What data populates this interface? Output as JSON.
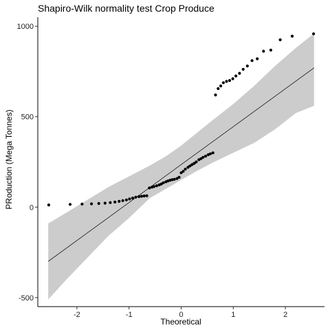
{
  "chart_data": {
    "type": "scatter",
    "title": "Shapiro-Wilk normality test  Crop Produce",
    "xlabel": "Theoretical",
    "ylabel": "PRoduction (Mega Tonnes)",
    "xlim": [
      -2.75,
      2.75
    ],
    "ylim": [
      -550,
      1050
    ],
    "x_ticks": [
      -2,
      -1,
      0,
      1,
      2
    ],
    "x_tick_labels": [
      "-2",
      "-1",
      "0",
      "1",
      "2"
    ],
    "y_ticks": [
      -500,
      0,
      500,
      1000
    ],
    "y_tick_labels": [
      "-500",
      "0",
      "500",
      "1000"
    ],
    "grid": false,
    "reference_line": {
      "x": [
        -2.55,
        2.55
      ],
      "y": [
        -300,
        770
      ]
    },
    "confidence_band": {
      "x": [
        -2.55,
        -2.2,
        -1.8,
        -1.4,
        -1.0,
        -0.6,
        -0.3,
        0.0,
        0.3,
        0.6,
        1.0,
        1.4,
        1.8,
        2.2,
        2.55
      ],
      "upper": [
        -90,
        -30,
        40,
        110,
        170,
        230,
        280,
        340,
        410,
        480,
        570,
        670,
        780,
        880,
        960
      ],
      "lower": [
        -510,
        -400,
        -280,
        -160,
        -60,
        50,
        100,
        150,
        200,
        245,
        300,
        355,
        430,
        520,
        560
      ]
    },
    "series": [
      {
        "color": "#000000",
        "x": [
          -2.54,
          -2.13,
          -1.9,
          -1.72,
          -1.58,
          -1.46,
          -1.36,
          -1.27,
          -1.19,
          -1.12,
          -1.05,
          -0.99,
          -0.93,
          -0.87,
          -0.81,
          -0.76,
          -0.71,
          -0.66,
          -0.61,
          -0.56,
          -0.52,
          -0.47,
          -0.42,
          -0.38,
          -0.34,
          -0.29,
          -0.25,
          -0.21,
          -0.17,
          -0.13,
          -0.08,
          -0.04,
          0.0,
          0.04,
          0.08,
          0.13,
          0.17,
          0.21,
          0.25,
          0.29,
          0.34,
          0.38,
          0.42,
          0.47,
          0.52,
          0.56,
          0.61,
          0.66,
          0.71,
          0.76,
          0.81,
          0.87,
          0.93,
          0.99,
          1.05,
          1.12,
          1.19,
          1.27,
          1.36,
          1.46,
          1.58,
          1.72,
          1.9,
          2.13,
          2.54
        ],
        "y": [
          12,
          15,
          17,
          18,
          20,
          22,
          25,
          28,
          32,
          36,
          40,
          45,
          50,
          55,
          58,
          60,
          62,
          63,
          106,
          110,
          114,
          118,
          123,
          128,
          135,
          140,
          145,
          149,
          152,
          154,
          158,
          165,
          190,
          198,
          210,
          220,
          228,
          235,
          242,
          250,
          262,
          268,
          275,
          282,
          290,
          295,
          300,
          620,
          655,
          670,
          688,
          695,
          700,
          710,
          725,
          740,
          762,
          780,
          810,
          820,
          862,
          868,
          925,
          945,
          958
        ]
      }
    ]
  }
}
